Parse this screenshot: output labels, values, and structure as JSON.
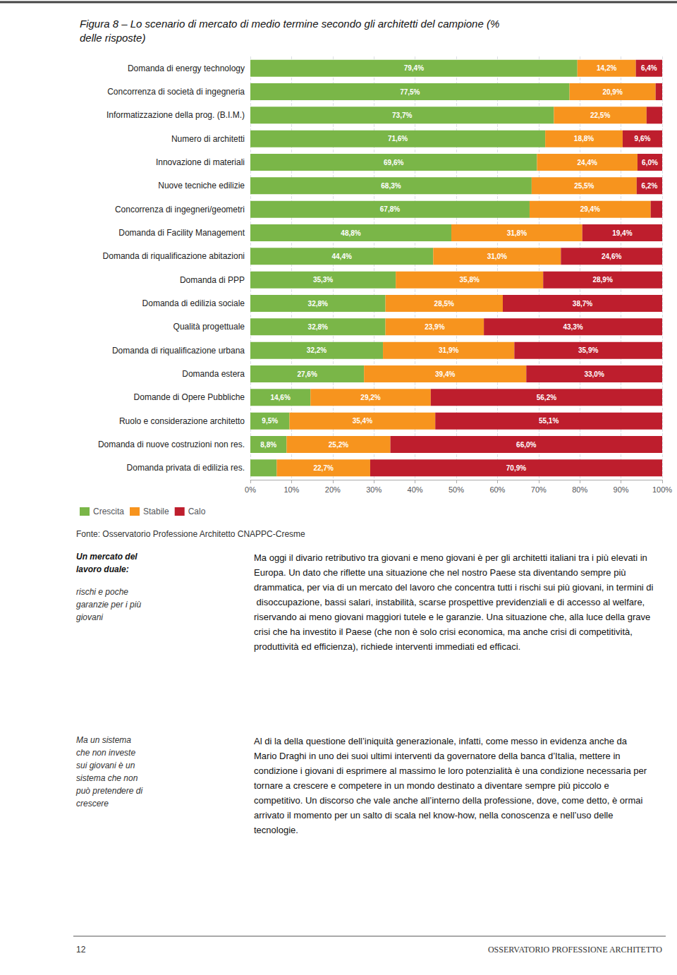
{
  "chart_data": {
    "type": "bar",
    "title": "Figura 8 – Lo scenario di mercato di medio termine secondo gli architetti del campione (%\ndelle risposte)",
    "orientation": "horizontal",
    "stacked": true,
    "data_labels": true,
    "grid": true,
    "legend": "lower left",
    "categories": [
      "Domanda di energy technology",
      "Concorrenza di società di ingegneria",
      "Informatizzazione della prog. (B.I.M.)",
      "Numero di architetti",
      "Innovazione di materiali",
      "Nuove tecniche edilizie",
      "Concorrenza di ingegneri/geometri",
      "Domanda di Facility Management",
      "Domanda di riqualificazione abitazioni",
      "Domanda di PPP",
      "Domanda di edilizia sociale",
      "Qualità progettuale",
      "Domanda di riqualificazione urbana",
      "Domanda estera",
      "Domande di Opere Pubbliche",
      "Ruolo e considerazione architetto",
      "Domanda di nuove costruzioni non res.",
      "Domanda privata di edilizia res."
    ],
    "series": [
      {
        "name": "Crescita",
        "color": "#7ab648",
        "values": [
          79.4,
          77.5,
          73.7,
          71.6,
          69.6,
          68.3,
          67.8,
          48.8,
          44.4,
          35.3,
          32.8,
          32.8,
          32.2,
          27.6,
          14.6,
          9.5,
          8.8,
          6.4
        ],
        "value_labels": [
          "79,4%",
          "77,5%",
          "73,7%",
          "71,6%",
          "69,6%",
          "68,3%",
          "67,8%",
          "48,8%",
          "44,4%",
          "35,3%",
          "32,8%",
          "32,8%",
          "32,2%",
          "27,6%",
          "14,6%",
          "9,5%",
          "8,8%",
          null
        ]
      },
      {
        "name": "Stabile",
        "color": "#f7941e",
        "values": [
          14.2,
          20.9,
          22.5,
          18.8,
          24.4,
          25.5,
          29.4,
          31.8,
          31.0,
          35.8,
          28.5,
          23.9,
          31.9,
          39.4,
          29.2,
          35.4,
          25.2,
          22.7
        ],
        "value_labels": [
          "14,2%",
          "20,9%",
          "22,5%",
          "18,8%",
          "24,4%",
          "25,5%",
          "29,4%",
          "31,8%",
          "31,0%",
          "35,8%",
          "28,5%",
          "23,9%",
          "31,9%",
          "39,4%",
          "29,2%",
          "35,4%",
          "25,2%",
          "22,7%"
        ]
      },
      {
        "name": "Calo",
        "color": "#be1e2d",
        "values": [
          6.4,
          1.6,
          3.8,
          9.6,
          6.0,
          6.2,
          2.8,
          19.4,
          24.6,
          28.9,
          38.7,
          43.3,
          35.9,
          33.0,
          56.2,
          55.1,
          66.0,
          70.9
        ],
        "value_labels": [
          "6,4%",
          null,
          null,
          "9,6%",
          "6,0%",
          "6,2%",
          null,
          "19,4%",
          "24,6%",
          "28,9%",
          "38,7%",
          "43,3%",
          "35,9%",
          "33,0%",
          "56,2%",
          "55,1%",
          "66,0%",
          "70,9%"
        ]
      }
    ],
    "xlim": [
      0,
      100
    ],
    "xticks": [
      {
        "value": 0,
        "label": "0%"
      },
      {
        "value": 10,
        "label": "10%"
      },
      {
        "value": 20,
        "label": "20%"
      },
      {
        "value": 30,
        "label": "30%"
      },
      {
        "value": 40,
        "label": "40%"
      },
      {
        "value": 50,
        "label": "50%"
      },
      {
        "value": 60,
        "label": "60%"
      },
      {
        "value": 70,
        "label": "70%"
      },
      {
        "value": 80,
        "label": "80%"
      },
      {
        "value": 90,
        "label": "90%"
      },
      {
        "value": 100,
        "label": "100%"
      }
    ],
    "annotations": [
      "Fonte: Osservatorio Professione Architetto CNAPPC-Cresme",
      "Un mercato del\nlavoro duale:",
      "rischi e poche\ngaranzie per i più\ngiovani",
      "Ma oggi il divario retributivo tra giovani e meno giovani è per gli architetti italiani tra i più elevati in Europa. Un dato che riflette una situazione che nel nostro Paese sta diventando sempre più drammatica, per via di un mercato del lavoro che concentra tutti i rischi sui più giovani, in termini di disoccupazione, bassi salari, instabilità, scarse prospettive previdenziali e di accesso al welfare, riservando ai meno giovani maggiori tutele e le garanzie. Una situazione che, alla luce della grave crisi che ha investito il Paese (che non è solo crisi economica, ma anche crisi di competitività, produttività ed efficienza), richiede interventi immediati ed efficaci.",
      "Ma un sistema\nche non investe\nsui giovani è un\nsistema che non\npuò pretendere di\ncrescere",
      "Al di la della questione dell’iniquità generazionale, infatti, come messo in evidenza anche da Mario Draghi in uno dei suoi ultimi interventi da governatore della banca d’Italia, mettere in condizione i giovani di esprimere al massimo le loro potenzialità è una condizione necessaria per tornare a crescere e competere in un mondo destinato a diventare sempre più piccolo e competitivo. Un discorso che vale anche all’interno della professione, dove, come detto, è ormai arrivato il momento per un salto di scala nel know-how, nella conoscenza e nell’uso delle tecnologie.",
      "12",
      "OSSERVATORIO PROFESSIONE ARCHITETTO"
    ]
  }
}
